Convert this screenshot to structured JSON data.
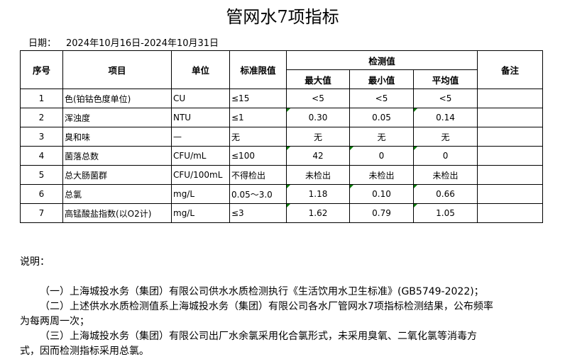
{
  "title": "管网水7项指标",
  "date": {
    "label": "日期：",
    "value": "2024年10月16日-2024年10月31日"
  },
  "table": {
    "headers": {
      "seq": "序号",
      "item": "项目",
      "unit": "单位",
      "limit": "标准限值",
      "detected": "检测值",
      "max": "最大值",
      "min": "最小值",
      "avg": "平均值",
      "remark": "备注"
    },
    "rows": [
      {
        "seq": "1",
        "item": "色(铂钴色度单位)",
        "unit": "CU",
        "limit": "≤15",
        "max": "<5",
        "min": "<5",
        "avg": "<5",
        "flags": [
          false,
          false,
          false
        ]
      },
      {
        "seq": "2",
        "item": "浑浊度",
        "unit": "NTU",
        "limit": "≤1",
        "max": "0.30",
        "min": "0.05",
        "avg": "0.14",
        "flags": [
          true,
          false,
          true
        ]
      },
      {
        "seq": "3",
        "item": "臭和味",
        "unit": "—",
        "limit": "无",
        "max": "无",
        "min": "无",
        "avg": "无",
        "flags": [
          false,
          false,
          false
        ]
      },
      {
        "seq": "4",
        "item": "菌落总数",
        "unit": "CFU/mL",
        "limit": "≤100",
        "max": "42",
        "min": "0",
        "avg": "0",
        "flags": [
          true,
          true,
          true
        ]
      },
      {
        "seq": "5",
        "item": "总大肠菌群",
        "unit": "CFU/100mL",
        "limit": "不得检出",
        "max": "未检出",
        "min": "未检出",
        "avg": "未检出",
        "flags": [
          false,
          false,
          false
        ]
      },
      {
        "seq": "6",
        "item": "总氯",
        "unit": "mg/L",
        "limit": "0.05～3.0",
        "max": "1.18",
        "min": "0.10",
        "avg": "0.66",
        "flags": [
          true,
          true,
          true
        ]
      },
      {
        "seq": "7",
        "item": "高锰酸盐指数(以O2计)",
        "unit": "mg/L",
        "limit": "≤3",
        "max": "1.62",
        "min": "0.79",
        "avg": "1.05",
        "flags": [
          true,
          false,
          true
        ]
      }
    ]
  },
  "notes": {
    "heading": "说明：",
    "items": [
      "（一）上海城投水务（集团）有限公司供水水质检测执行《生活饮用水卫生标准》(GB5749-2022)；",
      "（二）上述供水水质检测值系上海城投水务（集团）有限公司各水厂管网水7项指标检测结果，公布频率为每两周一次；",
      "（三）上海城投水务（集团）有限公司出厂水余氯采用化合氯形式，未采用臭氧、二氧化氯等消毒方式，因而检测指标采用总氯。"
    ]
  },
  "colors": {
    "flag": "#0a7d0a"
  }
}
